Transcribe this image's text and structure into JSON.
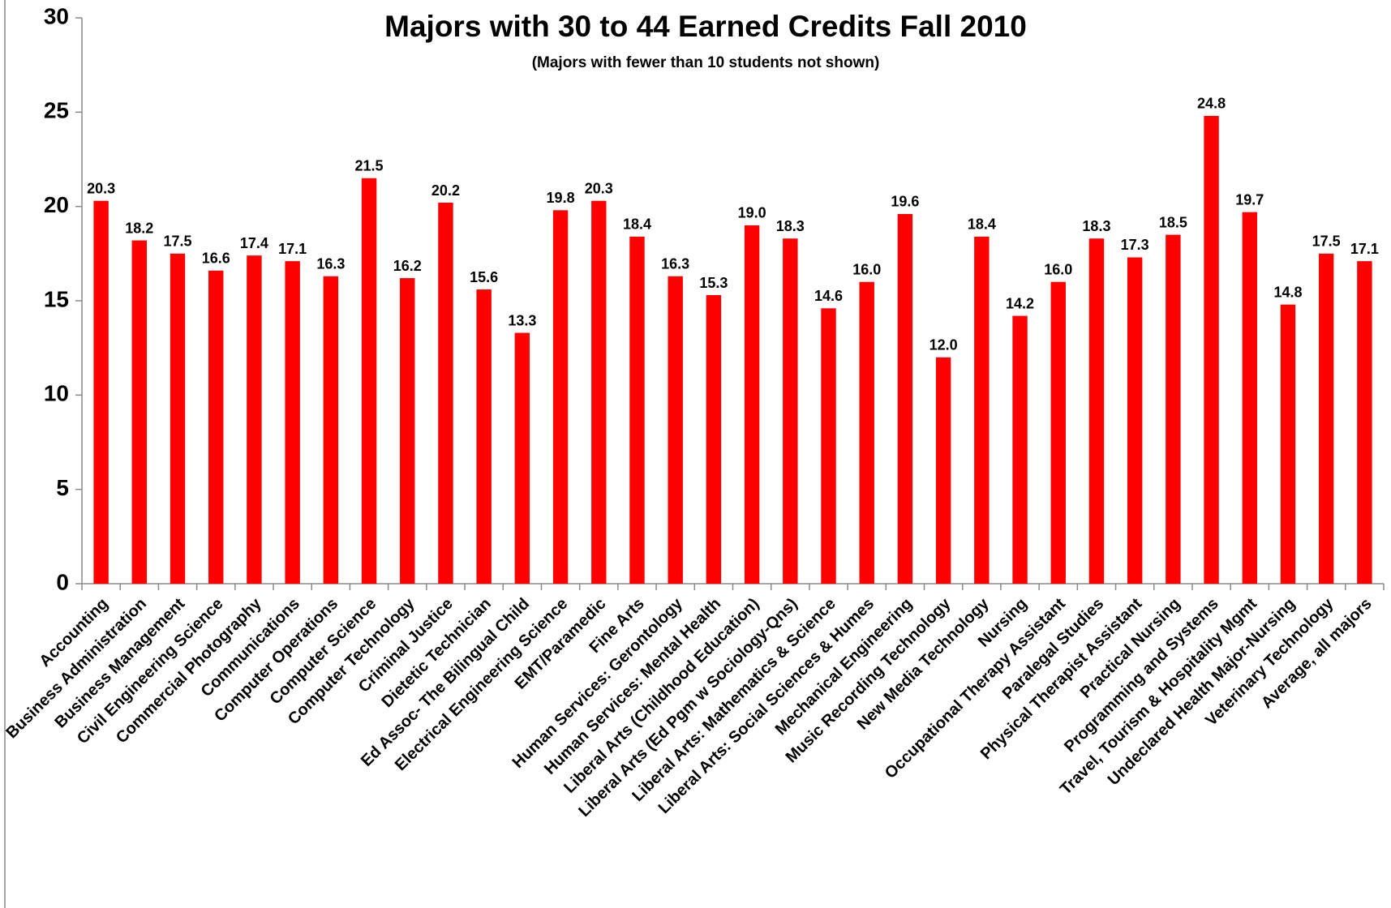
{
  "chart_data": {
    "type": "bar",
    "title": "Majors with 30 to 44 Earned Credits Fall 2010",
    "subtitle": "(Majors with fewer than 10 students not shown)",
    "categories": [
      "Accounting",
      "Business Administration",
      "Business Management",
      "Civil Engineering Science",
      "Commercial Photography",
      "Communications",
      "Computer Operations",
      "Computer Science",
      "Computer Technology",
      "Criminal Justice",
      "Dietetic Technician",
      "Ed Assoc- The Bilingual Child",
      "Electrical Engineering Science",
      "EMT/Paramedic",
      "Fine Arts",
      "Human Services: Gerontology",
      "Human Services: Mental Health",
      "Liberal Arts (Childhood Education)",
      "Liberal Arts (Ed Pgm w Sociology-Qns)",
      "Liberal Arts: Mathematics & Science",
      "Liberal Arts: Social Sciences & Humes",
      "Mechanical Engineering",
      "Music Recording Technology",
      "New Media Technology",
      "Nursing",
      "Occupational Therapy Assistant",
      "Paralegal Studies",
      "Physical Therapist Assistant",
      "Practical Nursing",
      "Programming and Systems",
      "Travel, Tourism & Hospitality Mgmt",
      "Undeclared Health Major-Nursing",
      "Veterinary Technology",
      "Average, all majors"
    ],
    "values": [
      20.3,
      18.2,
      17.5,
      16.6,
      17.4,
      17.1,
      16.3,
      21.5,
      16.2,
      20.2,
      15.6,
      13.3,
      19.8,
      20.3,
      18.4,
      16.3,
      15.3,
      19.0,
      18.3,
      14.6,
      16.0,
      19.6,
      12.0,
      18.4,
      14.2,
      16.0,
      18.3,
      17.3,
      18.5,
      24.8,
      19.7,
      14.8,
      17.5,
      17.1
    ],
    "value_labels": [
      "20.3",
      "18.2",
      "17.5",
      "16.6",
      "17.4",
      "17.1",
      "16.3",
      "21.5",
      "16.2",
      "20.2",
      "15.6",
      "13.3",
      "19.8",
      "20.3",
      "18.4",
      "16.3",
      "15.3",
      "19.0",
      "18.3",
      "14.6",
      "16.0",
      "19.6",
      "12.0",
      "18.4",
      "14.2",
      "16.0",
      "18.3",
      "17.3",
      "18.5",
      "24.8",
      "19.7",
      "14.8",
      "17.5",
      "17.1"
    ],
    "color": "#ff0000",
    "ylim": [
      0,
      30
    ],
    "yticks": [
      0,
      5,
      10,
      15,
      20,
      25,
      30
    ]
  }
}
